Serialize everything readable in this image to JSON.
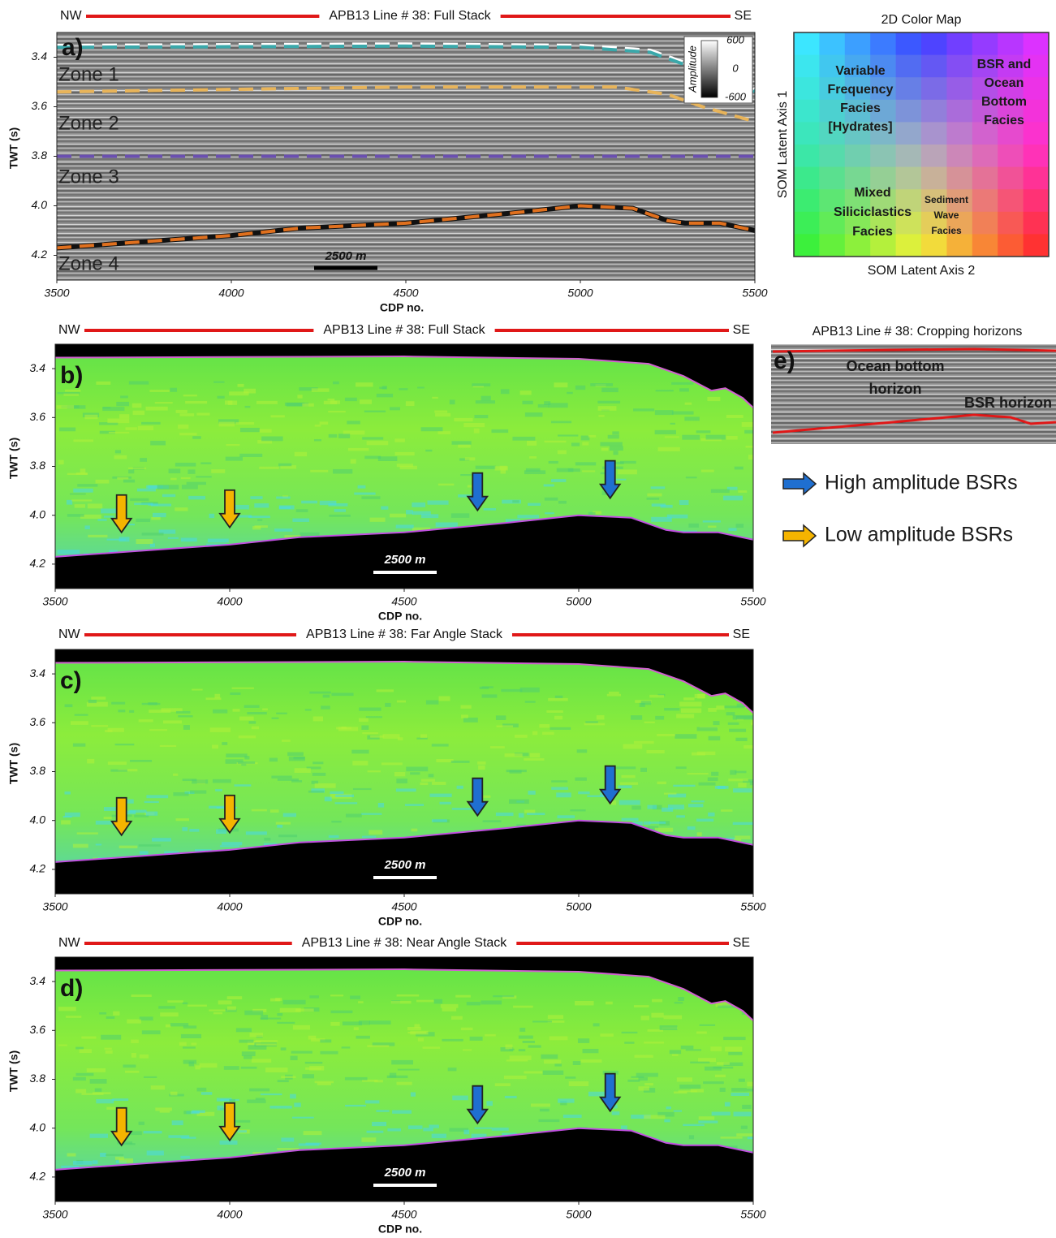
{
  "chart_data": [
    {
      "type": "seismic",
      "label": "a)",
      "title": "APB13 Line # 38: Full Stack",
      "left_dir": "NW",
      "right_dir": "SE",
      "xlabel": "CDP no.",
      "ylabel": "TWT (s)",
      "xlim": [
        3500,
        5500
      ],
      "xticks": [
        3500,
        4000,
        4500,
        5000,
        5500
      ],
      "ylim": [
        3.3,
        4.3
      ],
      "y_reversed": true,
      "yticks": [
        3.4,
        3.6,
        3.8,
        {
          "value": 4,
          "label": "4.0"
        },
        4.2
      ],
      "horizons": [
        {
          "color": "#3aa8aa",
          "x": [
            3500,
            4500,
            5000,
            5200,
            5300,
            5380,
            5420,
            5470,
            5500
          ],
          "values": [
            3.36,
            3.355,
            3.36,
            3.38,
            3.43,
            3.46,
            3.48,
            3.5,
            3.54
          ]
        },
        {
          "color": "#e8b45a",
          "x": [
            3500,
            4500,
            5100,
            5250,
            5350,
            5500
          ],
          "values": [
            3.54,
            3.52,
            3.52,
            3.55,
            3.6,
            3.66
          ]
        },
        {
          "color": "#6a4fb0",
          "x": [
            3500,
            5500
          ],
          "values": [
            3.8,
            3.8
          ]
        },
        {
          "color": "#e0701e",
          "x": [
            3500,
            4000,
            4200,
            4500,
            4800,
            5000,
            5150,
            5250,
            5300,
            5400,
            5500
          ],
          "values": [
            4.17,
            4.12,
            4.09,
            4.07,
            4.03,
            4.0,
            4.01,
            4.06,
            4.07,
            4.07,
            4.1
          ]
        }
      ],
      "zone_labels": [
        "Zone 1",
        "Zone 2",
        "Zone 3",
        "Zone 4"
      ],
      "colorbar": {
        "label": "Amplitude",
        "lim": [
          -600,
          600
        ],
        "ticks": [
          600,
          0,
          -600
        ]
      },
      "scale_bar": "2500 m"
    },
    {
      "type": "facies",
      "label": "b)",
      "title": "APB13 Line # 38: Full Stack",
      "left_dir": "NW",
      "right_dir": "SE",
      "xlabel": "CDP no.",
      "ylabel": "TWT (s)",
      "xlim": [
        3500,
        5500
      ],
      "xticks": [
        3500,
        4000,
        4500,
        5000,
        5500
      ],
      "ylim": [
        3.3,
        4.3
      ],
      "y_reversed": true,
      "yticks": [
        3.4,
        3.6,
        3.8,
        {
          "value": 4,
          "label": "4.0"
        },
        4.2
      ],
      "ocean_bottom": {
        "x": [
          3500,
          4500,
          5000,
          5200,
          5300,
          5380,
          5420,
          5470,
          5500
        ],
        "values": [
          3.355,
          3.35,
          3.36,
          3.38,
          3.43,
          3.49,
          3.48,
          3.52,
          3.56
        ]
      },
      "bsr": {
        "x": [
          3500,
          4000,
          4200,
          4500,
          4800,
          5000,
          5150,
          5250,
          5300,
          5400,
          5500
        ],
        "values": [
          4.17,
          4.12,
          4.09,
          4.07,
          4.03,
          4.0,
          4.01,
          4.06,
          4.07,
          4.07,
          4.1
        ]
      },
      "arrows": [
        {
          "x": 3690,
          "y": 4.07,
          "color": "#f5b400"
        },
        {
          "x": 4000,
          "y": 4.05,
          "color": "#f5b400"
        },
        {
          "x": 4710,
          "y": 3.98,
          "color": "#1f6fd0"
        },
        {
          "x": 5090,
          "y": 3.93,
          "color": "#1f6fd0"
        }
      ],
      "scale_bar": "2500 m"
    },
    {
      "type": "facies",
      "label": "c)",
      "title": "APB13 Line # 38: Far Angle  Stack",
      "left_dir": "NW",
      "right_dir": "SE",
      "xlabel": "CDP no.",
      "ylabel": "TWT (s)",
      "xlim": [
        3500,
        5500
      ],
      "xticks": [
        3500,
        4000,
        4500,
        5000,
        5500
      ],
      "ylim": [
        3.3,
        4.3
      ],
      "y_reversed": true,
      "yticks": [
        3.4,
        3.6,
        3.8,
        {
          "value": 4,
          "label": "4.0"
        },
        4.2
      ],
      "ocean_bottom": {
        "x": [
          3500,
          4500,
          5000,
          5200,
          5300,
          5380,
          5420,
          5470,
          5500
        ],
        "values": [
          3.355,
          3.35,
          3.36,
          3.38,
          3.43,
          3.49,
          3.48,
          3.52,
          3.56
        ]
      },
      "bsr": {
        "x": [
          3500,
          4000,
          4200,
          4500,
          4800,
          5000,
          5150,
          5250,
          5300,
          5400,
          5500
        ],
        "values": [
          4.17,
          4.12,
          4.09,
          4.07,
          4.03,
          4.0,
          4.01,
          4.06,
          4.07,
          4.07,
          4.1
        ]
      },
      "arrows": [
        {
          "x": 3690,
          "y": 4.06,
          "color": "#f5b400"
        },
        {
          "x": 4000,
          "y": 4.05,
          "color": "#f5b400"
        },
        {
          "x": 4710,
          "y": 3.98,
          "color": "#1f6fd0"
        },
        {
          "x": 5090,
          "y": 3.93,
          "color": "#1f6fd0"
        }
      ],
      "scale_bar": "2500 m"
    },
    {
      "type": "facies",
      "label": "d)",
      "title": "APB13 Line # 38: Near Angle Stack",
      "left_dir": "NW",
      "right_dir": "SE",
      "xlabel": "CDP no.",
      "ylabel": "TWT (s)",
      "xlim": [
        3500,
        5500
      ],
      "xticks": [
        3500,
        4000,
        4500,
        5000,
        5500
      ],
      "ylim": [
        3.3,
        4.3
      ],
      "y_reversed": true,
      "yticks": [
        3.4,
        3.6,
        3.8,
        {
          "value": 4,
          "label": "4.0"
        },
        4.2
      ],
      "ocean_bottom": {
        "x": [
          3500,
          4500,
          5000,
          5200,
          5300,
          5380,
          5420,
          5470,
          5500
        ],
        "values": [
          3.355,
          3.35,
          3.36,
          3.38,
          3.43,
          3.49,
          3.48,
          3.52,
          3.56
        ]
      },
      "bsr": {
        "x": [
          3500,
          4000,
          4200,
          4500,
          4800,
          5000,
          5150,
          5250,
          5300,
          5400,
          5500
        ],
        "values": [
          4.17,
          4.12,
          4.09,
          4.07,
          4.03,
          4.0,
          4.01,
          4.06,
          4.07,
          4.07,
          4.1
        ]
      },
      "arrows": [
        {
          "x": 3690,
          "y": 4.07,
          "color": "#f5b400"
        },
        {
          "x": 4000,
          "y": 4.05,
          "color": "#f5b400"
        },
        {
          "x": 4710,
          "y": 3.98,
          "color": "#1f6fd0"
        },
        {
          "x": 5090,
          "y": 3.93,
          "color": "#1f6fd0"
        }
      ],
      "scale_bar": "2500 m"
    }
  ],
  "color_map": {
    "title": "2D Color Map",
    "y_axis": "SOM Latent Axis 1",
    "x_axis": "SOM Latent Axis 2",
    "facies": [
      [
        "Variable",
        "Frequency",
        "Facies",
        "[Hydrates]"
      ],
      [
        "BSR and",
        "Ocean",
        "Bottom",
        "Facies"
      ],
      [
        "Mixed",
        "Siliciclastics",
        "Facies"
      ],
      [
        "Sediment",
        "Wave",
        "Facies"
      ]
    ]
  },
  "panel_e": {
    "label": "e)",
    "title": "APB13 Line # 38: Cropping horizons",
    "labels": [
      [
        "Ocean bottom",
        "horizon"
      ],
      [
        "BSR horizon"
      ]
    ]
  },
  "legend": [
    {
      "color": "#1f6fd0",
      "label": "High amplitude BSRs"
    },
    {
      "color": "#f5b400",
      "label": "Low amplitude BSRs"
    }
  ]
}
